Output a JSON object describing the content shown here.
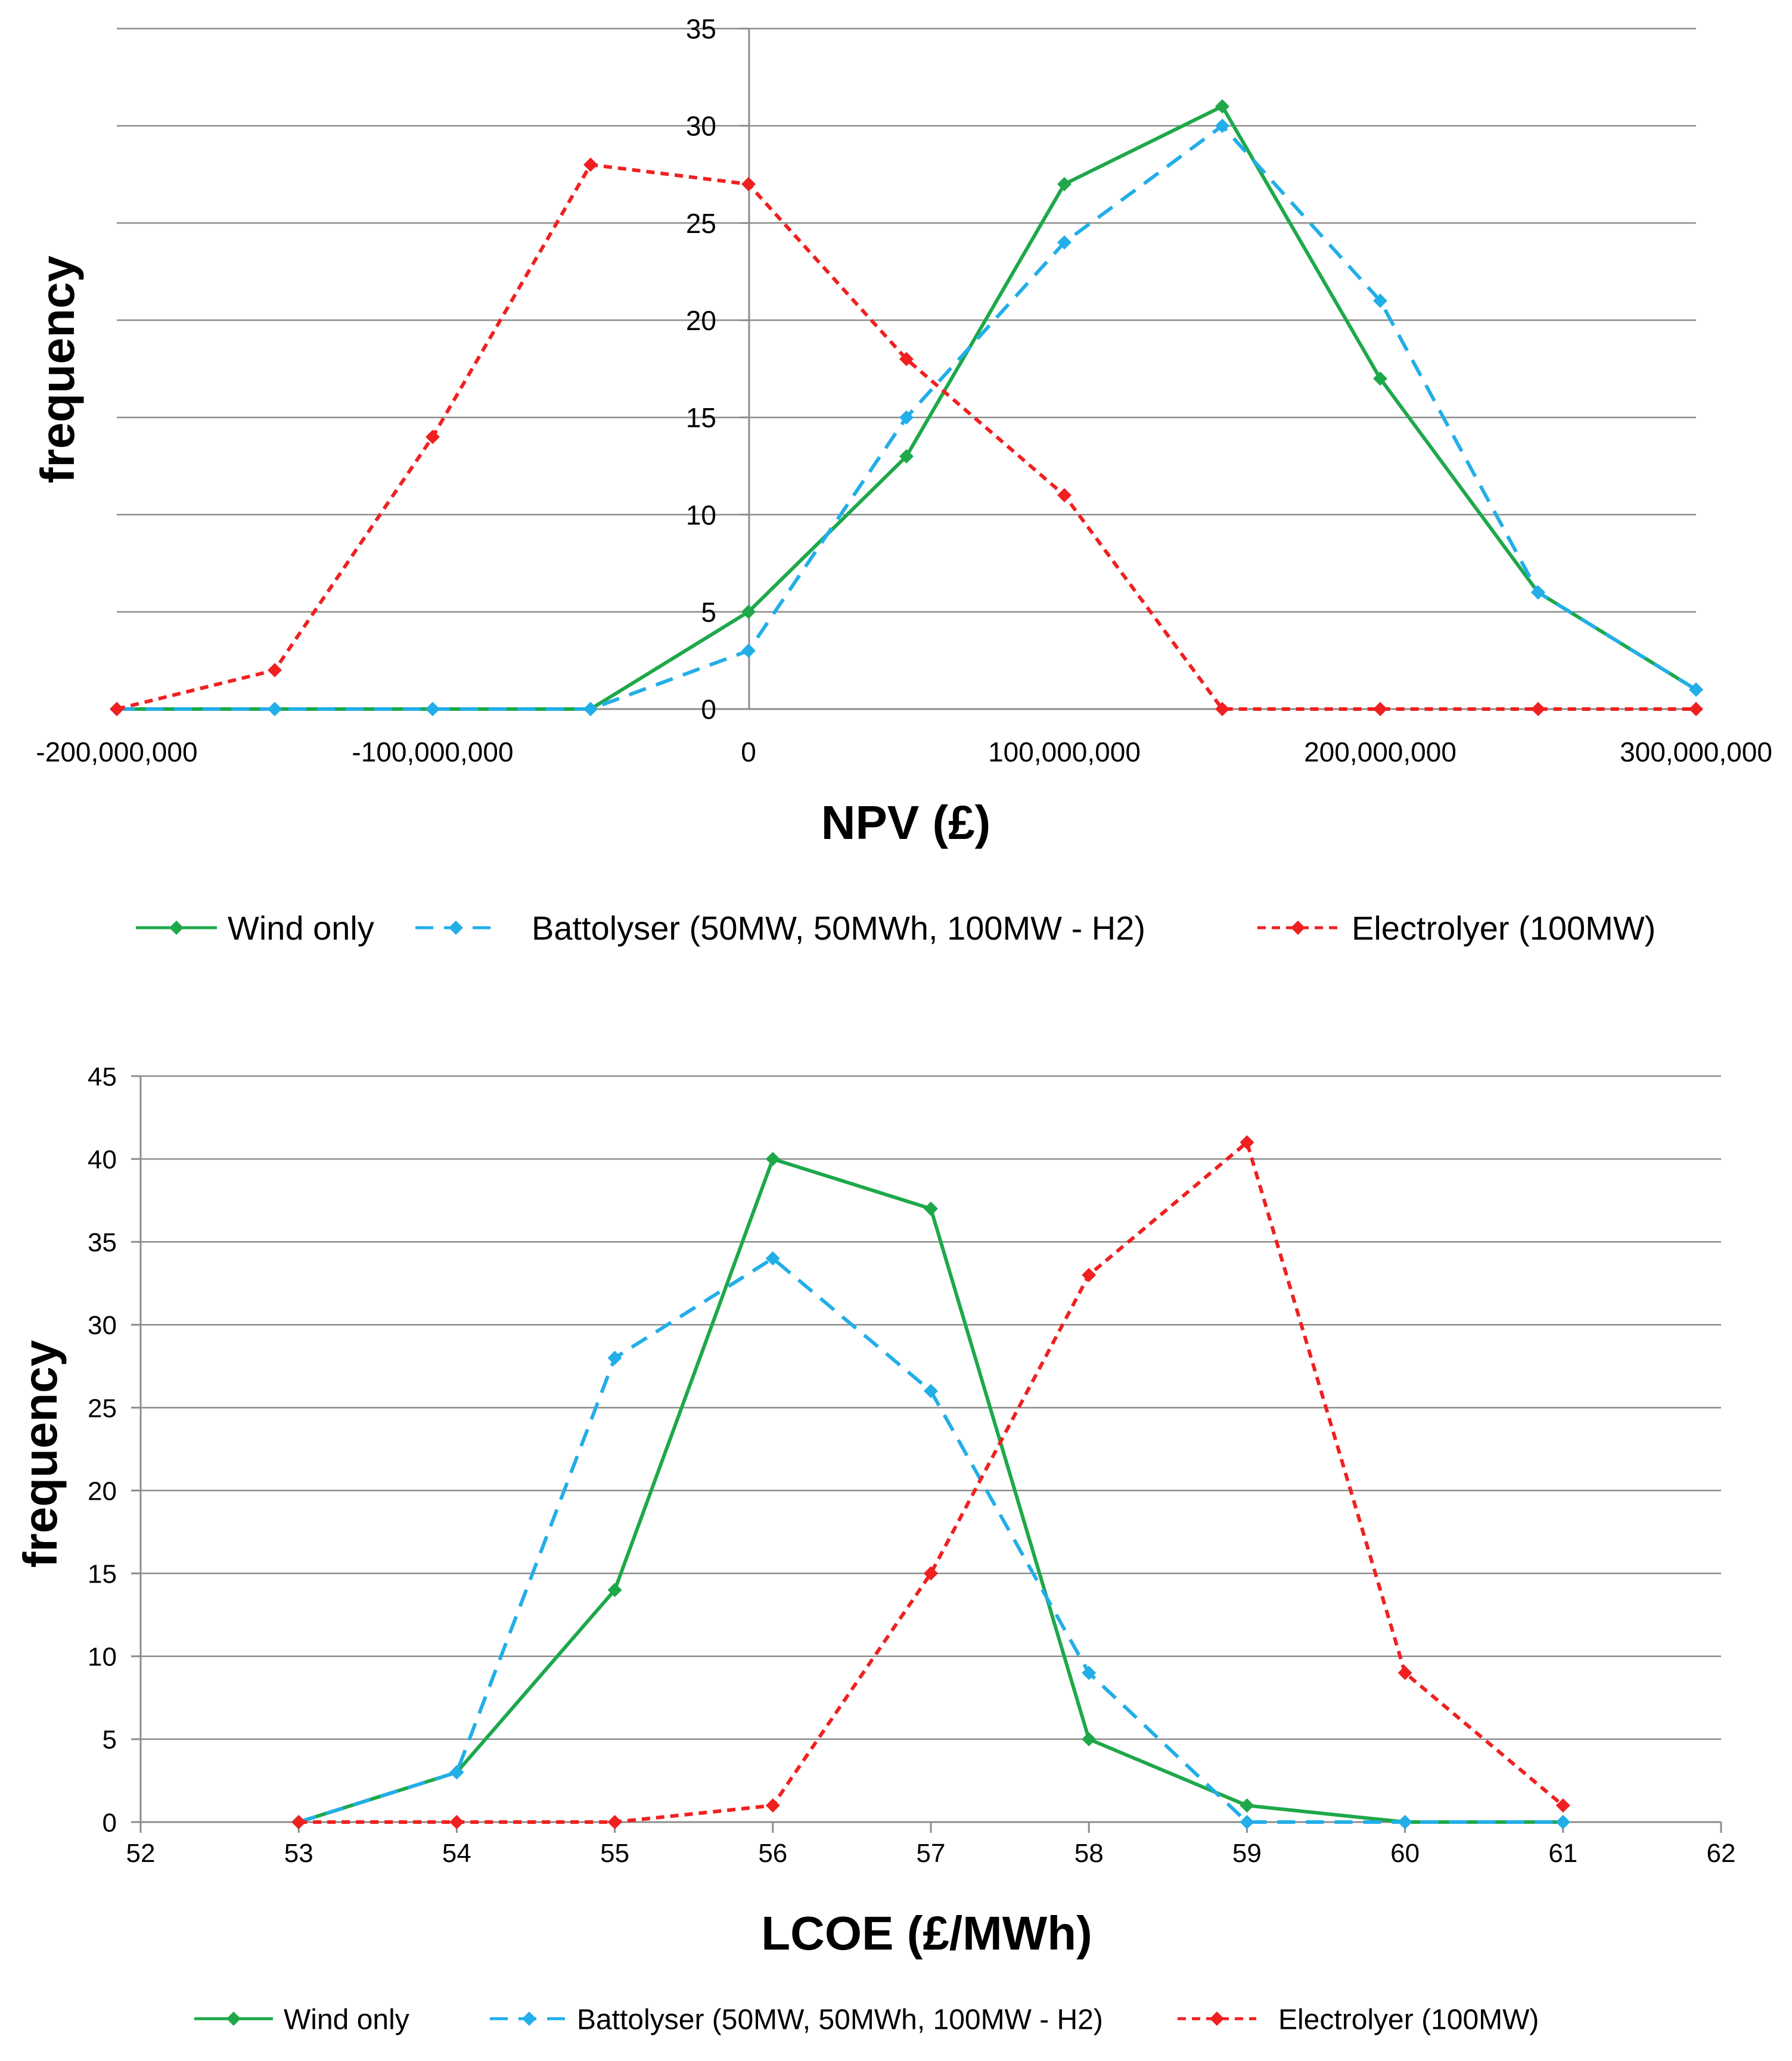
{
  "chart_data": [
    {
      "type": "line",
      "title": "",
      "xlabel": "NPV (£)",
      "ylabel": "frequency",
      "xlim": [
        -200000000,
        300000000
      ],
      "ylim": [
        0,
        35
      ],
      "x_ticks": [
        -200000000,
        -100000000,
        0,
        100000000,
        200000000,
        300000000
      ],
      "x_tick_labels": [
        "-200,000,000",
        "-100,000,000",
        "0",
        "100,000,000",
        "200,000,000",
        "300,000,000"
      ],
      "y_ticks": [
        0,
        5,
        10,
        15,
        20,
        25,
        30,
        35
      ],
      "y_tick_labels": [
        "0",
        "5",
        "10",
        "15",
        "20",
        "25",
        "30",
        "35"
      ],
      "grid": "horizontal",
      "legend_position": "bottom",
      "x": [
        -200000000,
        -150000000,
        -100000000,
        -50000000,
        0,
        50000000,
        100000000,
        150000000,
        200000000,
        250000000,
        300000000
      ],
      "series": [
        {
          "name": "Wind only",
          "color": "#1EA84A",
          "style": "solid",
          "values": [
            0,
            0,
            0,
            0,
            5,
            13,
            27,
            31,
            17,
            6,
            1
          ]
        },
        {
          "name": "Battolyser (50MW, 50MWh, 100MW - H2)",
          "color": "#22AEE8",
          "style": "dashed",
          "values": [
            0,
            0,
            0,
            0,
            3,
            15,
            24,
            30,
            21,
            6,
            1
          ]
        },
        {
          "name": "Electrolyer (100MW)",
          "color": "#F02020",
          "style": "dotted",
          "values": [
            0,
            2,
            14,
            28,
            27,
            18,
            11,
            0,
            0,
            0,
            0
          ]
        }
      ]
    },
    {
      "type": "line",
      "title": "",
      "xlabel": "LCOE (£/MWh)",
      "ylabel": "frequency",
      "xlim": [
        52,
        62
      ],
      "ylim": [
        0,
        45
      ],
      "x_ticks": [
        52,
        53,
        54,
        55,
        56,
        57,
        58,
        59,
        60,
        61,
        62
      ],
      "x_tick_labels": [
        "52",
        "53",
        "54",
        "55",
        "56",
        "57",
        "58",
        "59",
        "60",
        "61",
        "62"
      ],
      "y_ticks": [
        0,
        5,
        10,
        15,
        20,
        25,
        30,
        35,
        40,
        45
      ],
      "y_tick_labels": [
        "0",
        "5",
        "10",
        "15",
        "20",
        "25",
        "30",
        "35",
        "40",
        "45"
      ],
      "grid": "horizontal",
      "legend_position": "bottom",
      "x": [
        53,
        54,
        55,
        56,
        57,
        58,
        59,
        60,
        61
      ],
      "series": [
        {
          "name": "Wind only",
          "color": "#1EA84A",
          "style": "solid",
          "values": [
            0,
            3,
            14,
            40,
            37,
            5,
            1,
            0,
            0
          ]
        },
        {
          "name": "Battolyser (50MW, 50MWh, 100MW - H2)",
          "color": "#22AEE8",
          "style": "dashed",
          "values": [
            0,
            3,
            28,
            34,
            26,
            9,
            0,
            0,
            0
          ]
        },
        {
          "name": "Electrolyer (100MW)",
          "color": "#F02020",
          "style": "dotted",
          "values": [
            0,
            0,
            0,
            1,
            15,
            33,
            41,
            9,
            1
          ]
        }
      ]
    }
  ]
}
